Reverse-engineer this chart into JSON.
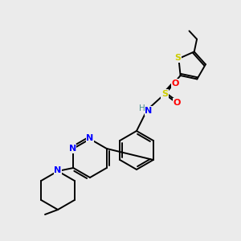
{
  "background_color": "#ebebeb",
  "bond_color": "#000000",
  "atom_colors": {
    "N": "#0000ff",
    "S": "#cccc00",
    "O": "#ff0000",
    "H": "#4a9090",
    "C": "#000000"
  },
  "figsize": [
    3.0,
    3.0
  ],
  "dpi": 100
}
